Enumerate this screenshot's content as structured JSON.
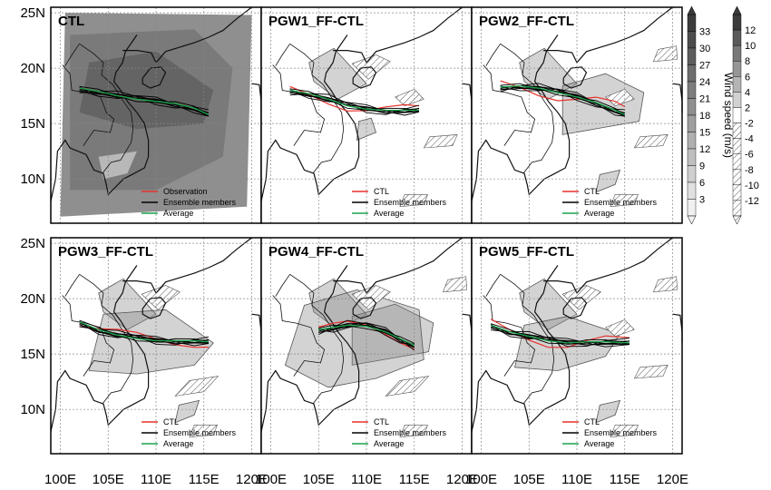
{
  "chart_data": {
    "type": "map",
    "x_axis": {
      "ticks": [
        "100E",
        "105E",
        "110E",
        "115E",
        "120E"
      ],
      "range": [
        99,
        121
      ]
    },
    "y_axis": {
      "ticks": [
        "25N",
        "20N",
        "15N",
        "10N"
      ],
      "range": [
        6,
        25.5
      ]
    },
    "grid": true,
    "colorbar_left": {
      "values": [
        "33",
        "30",
        "27",
        "24",
        "21",
        "18",
        "15",
        "12",
        "9",
        "6",
        "3"
      ]
    },
    "colorbar_right": {
      "values": [
        "12",
        "10",
        "8",
        "6",
        "4",
        "2",
        "-2",
        "-4",
        "-6",
        "-8",
        "-10",
        "-12"
      ],
      "label": "Wind speed (m/s)"
    },
    "panels": [
      {
        "title": "CTL",
        "legend": [
          "Observation",
          "Ensemble members",
          "Average"
        ],
        "legend_colors": [
          "#e8302a",
          "#000000",
          "#1aa34a"
        ],
        "track": [
          [
            102,
            18.2
          ],
          [
            104,
            17.9
          ],
          [
            106,
            17.5
          ],
          [
            108,
            17.2
          ],
          [
            110,
            17.0
          ],
          [
            112,
            16.8
          ],
          [
            114,
            16.4
          ],
          [
            115.5,
            15.8
          ]
        ]
      },
      {
        "title": "PGW1_FF-CTL",
        "legend": [
          "CTL",
          "Ensemble members",
          "Average"
        ],
        "legend_colors": [
          "#e8302a",
          "#000000",
          "#1aa34a"
        ],
        "track": [
          [
            102,
            18.0
          ],
          [
            104,
            17.7
          ],
          [
            106,
            17.2
          ],
          [
            108,
            16.6
          ],
          [
            110,
            16.3
          ],
          [
            112,
            16.2
          ],
          [
            114,
            16.2
          ],
          [
            115.5,
            16.2
          ]
        ]
      },
      {
        "title": "PGW2_FF-CTL",
        "legend": [
          "CTL",
          "Ensemble members",
          "Average"
        ],
        "legend_colors": [
          "#e8302a",
          "#000000",
          "#1aa34a"
        ],
        "track": [
          [
            102,
            18.3
          ],
          [
            104,
            18.4
          ],
          [
            106,
            18.2
          ],
          [
            108,
            17.8
          ],
          [
            110,
            17.4
          ],
          [
            112,
            16.9
          ],
          [
            114,
            16.2
          ],
          [
            115,
            15.8
          ]
        ]
      },
      {
        "title": "PGW3_FF-CTL",
        "legend": [
          "CTL",
          "Ensemble members",
          "Average"
        ],
        "legend_colors": [
          "#e8302a",
          "#000000",
          "#1aa34a"
        ],
        "track": [
          [
            102,
            17.9
          ],
          [
            104,
            17.2
          ],
          [
            106,
            16.7
          ],
          [
            108,
            16.4
          ],
          [
            110,
            16.2
          ],
          [
            112,
            16.2
          ],
          [
            114,
            16.2
          ],
          [
            115.5,
            16.1
          ]
        ]
      },
      {
        "title": "PGW4_FF-CTL",
        "legend": [
          "CTL",
          "Ensemble members",
          "Average"
        ],
        "legend_colors": [
          "#e8302a",
          "#000000",
          "#1aa34a"
        ],
        "track": [
          [
            105,
            17.2
          ],
          [
            106.5,
            17.4
          ],
          [
            108,
            17.6
          ],
          [
            110,
            17.5
          ],
          [
            112,
            17.0
          ],
          [
            113.5,
            16.4
          ],
          [
            115,
            15.8
          ]
        ]
      },
      {
        "title": "PGW5_FF-CTL",
        "legend": [
          "CTL",
          "Ensemble members",
          "Average"
        ],
        "legend_colors": [
          "#e8302a",
          "#000000",
          "#1aa34a"
        ],
        "track": [
          [
            101,
            17.6
          ],
          [
            103,
            17.0
          ],
          [
            105,
            16.6
          ],
          [
            107,
            16.2
          ],
          [
            109,
            16.0
          ],
          [
            111,
            16.1
          ],
          [
            113,
            16.1
          ],
          [
            115.5,
            16.0
          ]
        ]
      }
    ]
  }
}
